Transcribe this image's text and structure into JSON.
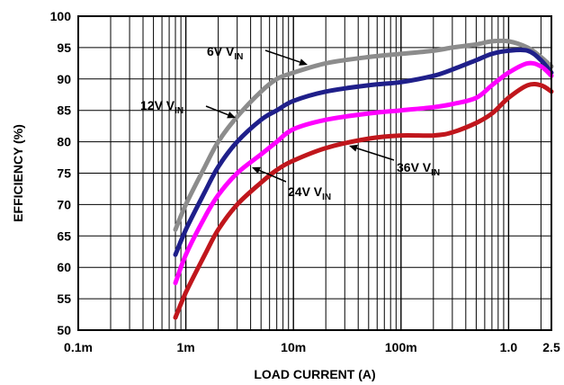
{
  "chart_data": {
    "type": "line",
    "xlabel": "LOAD CURRENT (A)",
    "ylabel": "EFFICIENCY (%)",
    "xscale": "log",
    "xlim": [
      0.0001,
      2.5
    ],
    "ylim": [
      50,
      100
    ],
    "grid": true,
    "x_ticks": [
      {
        "value": 0.0001,
        "label": "0.1m"
      },
      {
        "value": 0.001,
        "label": "1m"
      },
      {
        "value": 0.01,
        "label": "10m"
      },
      {
        "value": 0.1,
        "label": "100m"
      },
      {
        "value": 1.0,
        "label": "1.0"
      },
      {
        "value": 2.5,
        "label": "2.5"
      }
    ],
    "y_ticks": [
      50,
      55,
      60,
      65,
      70,
      75,
      80,
      85,
      90,
      95,
      100
    ],
    "series": [
      {
        "name": "6V VIN",
        "color": "#8c8c8c",
        "x": [
          0.0008,
          0.001,
          0.0015,
          0.002,
          0.003,
          0.005,
          0.007,
          0.01,
          0.02,
          0.05,
          0.1,
          0.2,
          0.3,
          0.5,
          0.7,
          1.0,
          1.5,
          2.0,
          2.5
        ],
        "y": [
          66,
          70,
          76,
          80,
          84,
          88,
          90,
          91,
          92.5,
          93.5,
          94,
          94.5,
          95,
          95.5,
          96,
          96,
          95,
          93.5,
          92
        ]
      },
      {
        "name": "12V VIN",
        "color": "#1f1f8a",
        "x": [
          0.0008,
          0.001,
          0.0015,
          0.002,
          0.003,
          0.005,
          0.007,
          0.01,
          0.02,
          0.05,
          0.1,
          0.2,
          0.3,
          0.5,
          0.7,
          1.0,
          1.5,
          2.0,
          2.5
        ],
        "y": [
          62,
          66,
          72,
          76,
          80,
          83.5,
          85,
          86.5,
          88,
          89,
          89.5,
          90.5,
          91.5,
          93,
          94,
          94.5,
          94.5,
          93,
          91
        ]
      },
      {
        "name": "24V VIN",
        "color": "#ff00ff",
        "x": [
          0.0008,
          0.001,
          0.0015,
          0.002,
          0.003,
          0.005,
          0.007,
          0.01,
          0.02,
          0.05,
          0.1,
          0.2,
          0.3,
          0.5,
          0.7,
          1.0,
          1.5,
          2.0,
          2.5
        ],
        "y": [
          57.5,
          62,
          68,
          71.5,
          75,
          78,
          80,
          82,
          83.5,
          84.5,
          85,
          85.5,
          86,
          87,
          89,
          91,
          92.5,
          92,
          90.5
        ]
      },
      {
        "name": "36V VIN",
        "color": "#c0161c",
        "x": [
          0.0008,
          0.001,
          0.0015,
          0.002,
          0.003,
          0.005,
          0.007,
          0.01,
          0.02,
          0.05,
          0.1,
          0.2,
          0.3,
          0.5,
          0.7,
          1.0,
          1.5,
          2.0,
          2.5
        ],
        "y": [
          52,
          56,
          62,
          66,
          70,
          73.5,
          75.5,
          77,
          79,
          80.5,
          81,
          81,
          81.5,
          83,
          84.5,
          87,
          89,
          89,
          88
        ]
      }
    ],
    "annotations": [
      {
        "text": "6V V",
        "sub": "IN",
        "series": "6V VIN"
      },
      {
        "text": "12V V",
        "sub": "IN",
        "series": "12V VIN"
      },
      {
        "text": "24V V",
        "sub": "IN",
        "series": "24V VIN"
      },
      {
        "text": "36V V",
        "sub": "IN",
        "series": "36V VIN"
      }
    ]
  }
}
